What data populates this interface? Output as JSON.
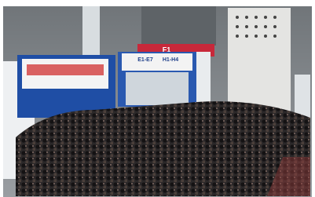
{
  "signs": {
    "red_sign": "F1",
    "gate_left": "E1-E7",
    "gate_right": "H1-H4"
  }
}
